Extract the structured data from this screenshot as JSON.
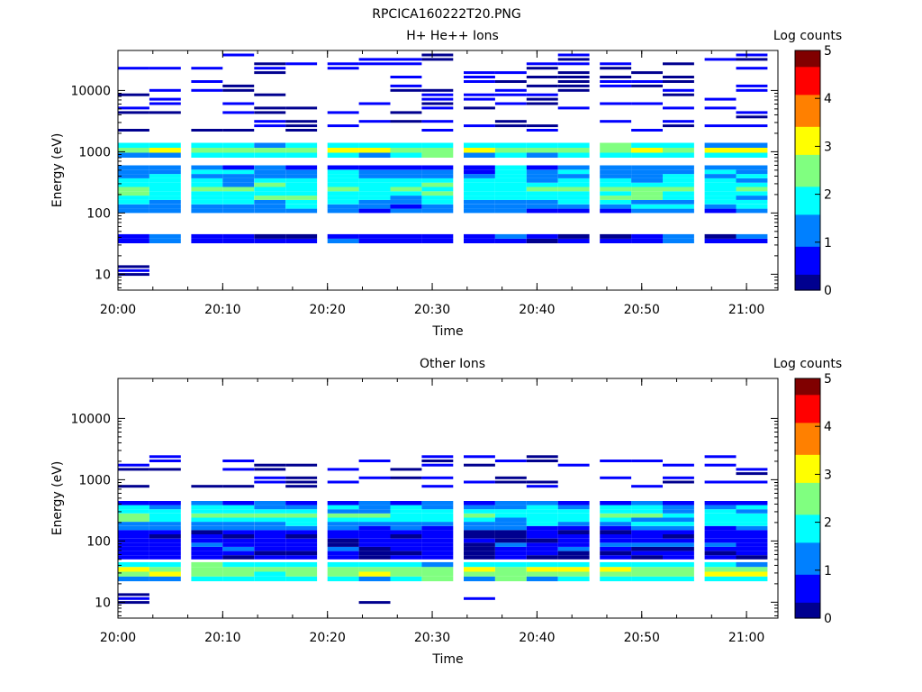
{
  "title": "RPCICA160222T20.PNG",
  "colormap": [
    "#00008F",
    "#0000FF",
    "#0080FF",
    "#00FFFF",
    "#80FF80",
    "#FFFF00",
    "#FF8000",
    "#FF0000",
    "#800000"
  ],
  "chart_data": [
    {
      "type": "heatmap",
      "title": "H+ He++ Ions",
      "xlabel": "Time",
      "ylabel": "Energy (eV)",
      "yscale": "log",
      "xlim": [
        "20:00",
        "21:03"
      ],
      "ylim": [
        5.5,
        45000
      ],
      "xticks": [
        "20:00",
        "20:10",
        "20:20",
        "20:30",
        "20:40",
        "20:50",
        "21:00"
      ],
      "yticks": [
        "10",
        "100",
        "1000",
        "10000"
      ],
      "colorbar": {
        "label": "Log counts",
        "range": [
          0,
          5
        ],
        "ticks": [
          "0",
          "1",
          "2",
          "3",
          "4",
          "5"
        ]
      },
      "time_bins": [
        "20:00",
        "20:03",
        "20:07",
        "20:10",
        "20:13",
        "20:16",
        "20:20",
        "20:23",
        "20:26",
        "20:29",
        "20:33",
        "20:36",
        "20:39",
        "20:42",
        "20:46",
        "20:49",
        "20:52",
        "20:56",
        "20:59"
      ],
      "grid": false,
      "description_of_cells": "log-count bands per time bin and energy range",
      "bands": [
        {
          "emin": 9,
          "emax": 14,
          "level": 0.2,
          "bins": [
            0
          ]
        },
        {
          "emin": 800,
          "emax": 1400,
          "level": 2.4,
          "bins": [
            0,
            1,
            2,
            3,
            4,
            5,
            6,
            7,
            8,
            9,
            10,
            11,
            12,
            13,
            14,
            15,
            16,
            17,
            18
          ]
        },
        {
          "emin": 100,
          "emax": 600,
          "level": 1.9,
          "bins": [
            0,
            1,
            2,
            3,
            4,
            5,
            6,
            7,
            8,
            9,
            10,
            11,
            12,
            13,
            14,
            15,
            16,
            17,
            18
          ]
        },
        {
          "emin": 32,
          "emax": 45,
          "level": 0.8,
          "bins": [
            0,
            1,
            2,
            3,
            4,
            5,
            6,
            7,
            8,
            9,
            10,
            11,
            12,
            13,
            14,
            15,
            16,
            17,
            18
          ]
        },
        {
          "emin": 2000,
          "emax": 40000,
          "level": 0.3,
          "bins": [
            0,
            1,
            2,
            3,
            4,
            5,
            6,
            7,
            8,
            9,
            10,
            11,
            12,
            13,
            14,
            15,
            16,
            17,
            18
          ]
        }
      ]
    },
    {
      "type": "heatmap",
      "title": "Other Ions",
      "xlabel": "Time",
      "ylabel": "Energy (eV)",
      "yscale": "log",
      "xlim": [
        "20:00",
        "21:03"
      ],
      "ylim": [
        5.5,
        45000
      ],
      "xticks": [
        "20:00",
        "20:10",
        "20:20",
        "20:30",
        "20:40",
        "20:50",
        "21:00"
      ],
      "yticks": [
        "10",
        "100",
        "1000",
        "10000"
      ],
      "colorbar": {
        "label": "Log counts",
        "range": [
          0,
          5
        ],
        "ticks": [
          "0",
          "1",
          "2",
          "3",
          "4",
          "5"
        ]
      },
      "time_bins": [
        "20:00",
        "20:03",
        "20:07",
        "20:10",
        "20:13",
        "20:16",
        "20:20",
        "20:23",
        "20:26",
        "20:29",
        "20:33",
        "20:36",
        "20:39",
        "20:42",
        "20:46",
        "20:49",
        "20:52",
        "20:56",
        "20:59"
      ],
      "grid": false,
      "bands": [
        {
          "emin": 9,
          "emax": 14,
          "level": 0.2,
          "bins": [
            0,
            7,
            10
          ]
        },
        {
          "emin": 22,
          "emax": 45,
          "level": 2.6,
          "bins": [
            0,
            1,
            2,
            3,
            4,
            5,
            6,
            7,
            8,
            9,
            10,
            11,
            12,
            13,
            14,
            15,
            16,
            17,
            18
          ]
        },
        {
          "emin": 150,
          "emax": 450,
          "level": 1.8,
          "bins": [
            0,
            1,
            2,
            3,
            4,
            5,
            6,
            7,
            8,
            9,
            10,
            11,
            12,
            13,
            14,
            15,
            16,
            17,
            18
          ]
        },
        {
          "emin": 50,
          "emax": 150,
          "level": 0.6,
          "bins": [
            0,
            1,
            2,
            3,
            4,
            5,
            6,
            7,
            8,
            9,
            10,
            11,
            12,
            13,
            14,
            15,
            16,
            17,
            18
          ]
        },
        {
          "emin": 700,
          "emax": 2500,
          "level": 0.3,
          "bins": [
            0,
            1,
            2,
            3,
            4,
            5,
            6,
            7,
            8,
            9,
            10,
            11,
            12,
            13,
            14,
            15,
            16,
            17,
            18
          ]
        }
      ]
    }
  ]
}
